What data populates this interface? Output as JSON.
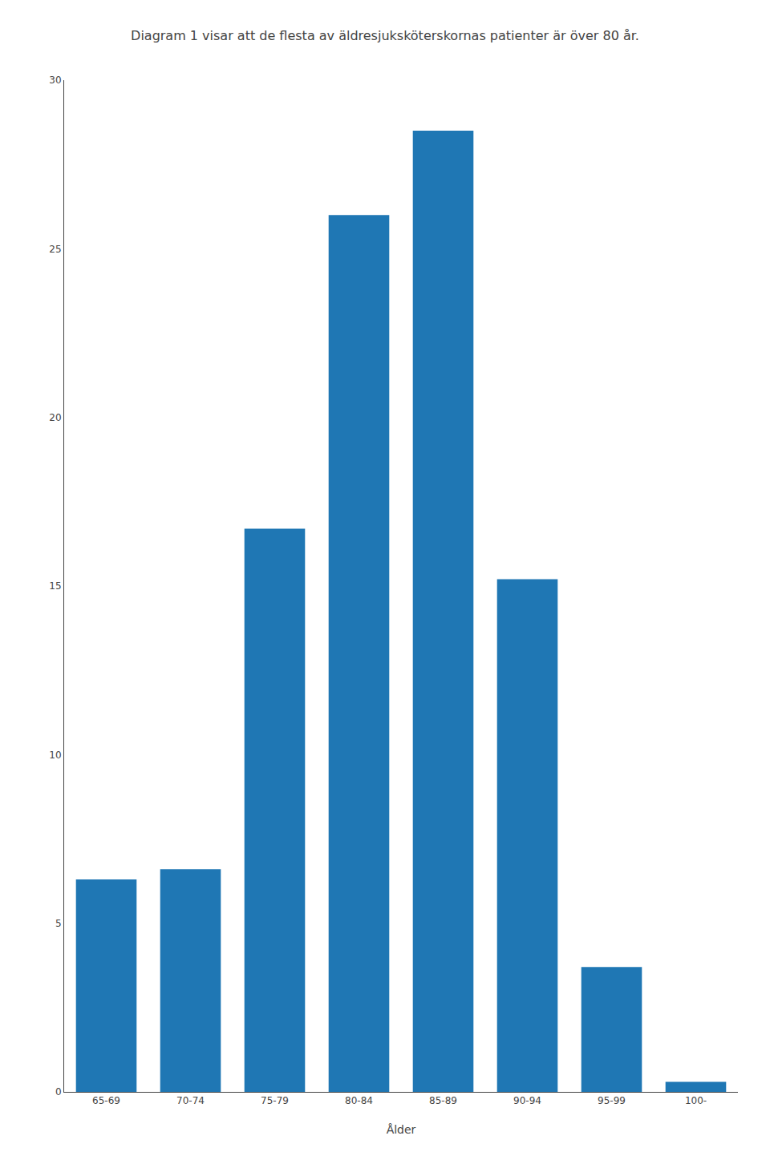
{
  "chart_data": {
    "type": "bar",
    "title": "Diagram 1 visar att de flesta av äldresjuksköterskornas patienter är över 80 år.",
    "x_label": "Ålder",
    "categories": [
      "65-69",
      "70-74",
      "75-79",
      "80-84",
      "85-89",
      "90-94",
      "95-99",
      "100-"
    ],
    "values": [
      6.3,
      6.6,
      16.7,
      26.0,
      28.5,
      15.2,
      3.7,
      0.3
    ],
    "ylim": [
      0,
      30
    ],
    "yticks": [
      0,
      5,
      10,
      15,
      20,
      25,
      30
    ],
    "grid": false
  }
}
